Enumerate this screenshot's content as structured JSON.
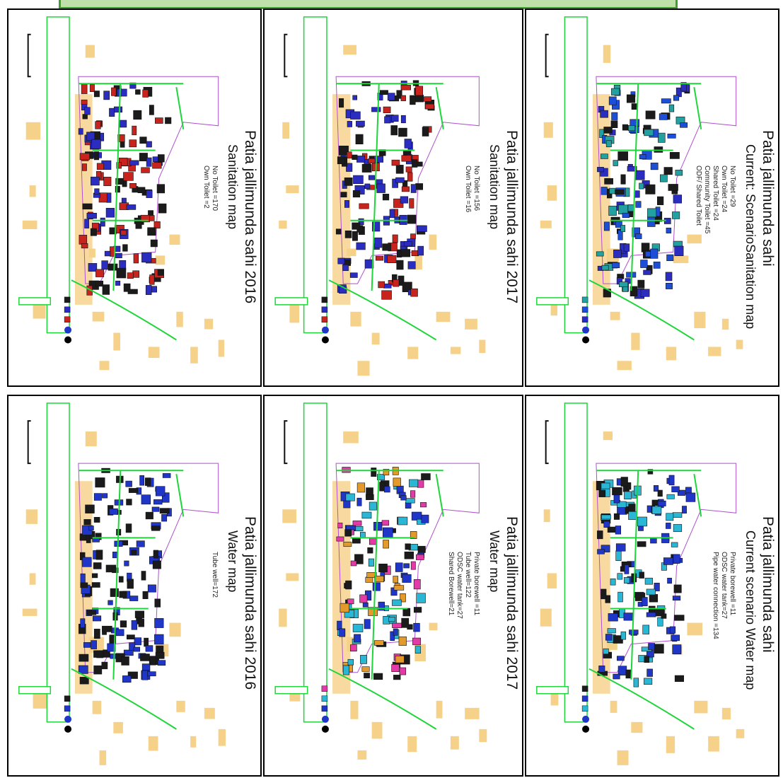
{
  "panels": [
    {
      "id": "sanitation-2016",
      "title": "Patia jallimunda sahi 2016",
      "subtitle": "Sanitation map",
      "stats": [
        "No Toilet =170",
        "Own Toilet =2"
      ],
      "building_palette": [
        "#c8231c",
        "#2a2dbf",
        "#1b1b1b"
      ]
    },
    {
      "id": "sanitation-2017",
      "title": "Patia jallimunda sahi 2017",
      "subtitle": "Sanitation map",
      "stats": [
        "No Toilet =156",
        "Own Toilet =16"
      ],
      "building_palette": [
        "#c8231c",
        "#2a2dbf",
        "#1b1b1b"
      ]
    },
    {
      "id": "sanitation-current",
      "title": "Patia jallimunda sahi",
      "subtitle": "Current: ScenarioSanitation map",
      "stats": [
        "No Toilet =29",
        "Own Toilet =24",
        "Shared Toilet =24",
        "Community Toilet =45",
        "ODF/ Shared Toilet"
      ],
      "building_palette": [
        "#2a2dbf",
        "#1d4fd6",
        "#23a0a0",
        "#1b1b1b"
      ]
    },
    {
      "id": "water-2016",
      "title": "Patia jallimunda sahi 2016",
      "subtitle": "Water map",
      "stats": [
        "Tube well=172"
      ],
      "building_palette": [
        "#1f36c8",
        "#1b1b1b"
      ]
    },
    {
      "id": "water-2017",
      "title": "Patia jallimunda sahi 2017",
      "subtitle": "Water map",
      "stats": [
        "Private borewell =11",
        "Tube well=122",
        "ODSC water tank=27",
        "Shared Borewell=21"
      ],
      "building_palette": [
        "#1f36c8",
        "#2ab7d6",
        "#e33aa8",
        "#e39a2b",
        "#1b1b1b"
      ]
    },
    {
      "id": "water-current",
      "title": "Patia jallimunda sahi",
      "subtitle": "Current scenario Water map",
      "stats": [
        "Private borewell =11",
        "ODSC water tank=27",
        "Pipe water connection =134"
      ],
      "building_palette": [
        "#2ab7d6",
        "#1f36c8",
        "#1b1b1b"
      ]
    }
  ],
  "colors": {
    "road": "#1fd63a",
    "settlement_boundary": "#b04fd0",
    "surrounding_building": "#f6d189",
    "header_fill": "#bfe0a8",
    "header_border": "#3fa02f"
  }
}
